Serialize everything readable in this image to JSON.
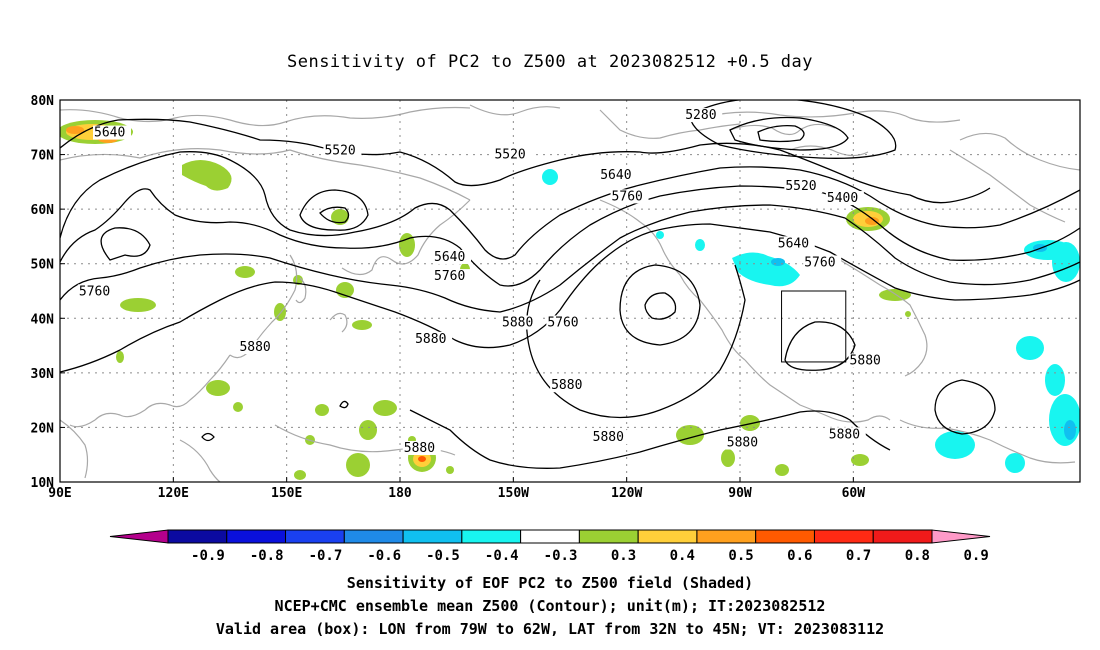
{
  "title": "Sensitivity of PC2 to Z500 at 2023082512 +0.5 day",
  "map": {
    "lat_ticks": [
      "80N",
      "70N",
      "60N",
      "50N",
      "40N",
      "30N",
      "20N",
      "10N"
    ],
    "lon_ticks": [
      "90E",
      "120E",
      "150E",
      "180",
      "150W",
      "120W",
      "90W",
      "60W"
    ]
  },
  "contour_labels": [
    {
      "text": "5280",
      "lon": -104.5,
      "lat": 76.5
    },
    {
      "text": "5400",
      "lon": -67.0,
      "lat": 61.3
    },
    {
      "text": "5520",
      "lon": 160.0,
      "lat": 70.0
    },
    {
      "text": "5520",
      "lon": -155.0,
      "lat": 69.3
    },
    {
      "text": "5520",
      "lon": -78.0,
      "lat": 63.5
    },
    {
      "text": "5640",
      "lon": 99.0,
      "lat": 73.3
    },
    {
      "text": "5640",
      "lon": -127.0,
      "lat": 65.5
    },
    {
      "text": "5640",
      "lon": -171.0,
      "lat": 50.5
    },
    {
      "text": "5640",
      "lon": -80.0,
      "lat": 53.0
    },
    {
      "text": "5760",
      "lon": 95.0,
      "lat": 44.2
    },
    {
      "text": "5760",
      "lon": -124.0,
      "lat": 61.6
    },
    {
      "text": "5760",
      "lon": -171.0,
      "lat": 47.0
    },
    {
      "text": "5760",
      "lon": -141.0,
      "lat": 38.5
    },
    {
      "text": "5760",
      "lon": -73.0,
      "lat": 49.5
    },
    {
      "text": "5880",
      "lon": 137.5,
      "lat": 34.0
    },
    {
      "text": "5880",
      "lon": -176.0,
      "lat": 35.5
    },
    {
      "text": "5880",
      "lon": -153.0,
      "lat": 38.5
    },
    {
      "text": "5880",
      "lon": -140.0,
      "lat": 27.0
    },
    {
      "text": "5880",
      "lon": -129.0,
      "lat": 17.5
    },
    {
      "text": "5880",
      "lon": -179.0,
      "lat": 15.5
    },
    {
      "text": "5880",
      "lon": -93.5,
      "lat": 16.5
    },
    {
      "text": "5880",
      "lon": -61.0,
      "lat": 31.5
    },
    {
      "text": "5880",
      "lon": -66.5,
      "lat": 18.0
    }
  ],
  "valid_box": {
    "lon_min": -79,
    "lon_max": -62,
    "lat_min": 32,
    "lat_max": 45
  },
  "colorbar": {
    "labels": [
      "-0.9",
      "-0.8",
      "-0.7",
      "-0.6",
      "-0.5",
      "-0.4",
      "-0.3",
      "0.3",
      "0.4",
      "0.5",
      "0.6",
      "0.7",
      "0.8",
      "0.9"
    ],
    "colors": [
      "#b4008c",
      "#0b0aa0",
      "#0a10dc",
      "#1a40f0",
      "#1f8ae8",
      "#10c0f0",
      "#18f5f0",
      "#ffffff",
      "#9bd033",
      "#ffcf3a",
      "#ffa01e",
      "#ff5a00",
      "#ff2a14",
      "#f01a1a",
      "#ff9ac8"
    ]
  },
  "footer": [
    "Sensitivity of EOF PC2 to Z500 field (Shaded)",
    "NCEP+CMC ensemble mean Z500 (Contour); unit(m); IT:2023082512",
    "Valid area (box): LON from 79W to 62W, LAT from 32N to 45N; VT: 2023083112"
  ]
}
